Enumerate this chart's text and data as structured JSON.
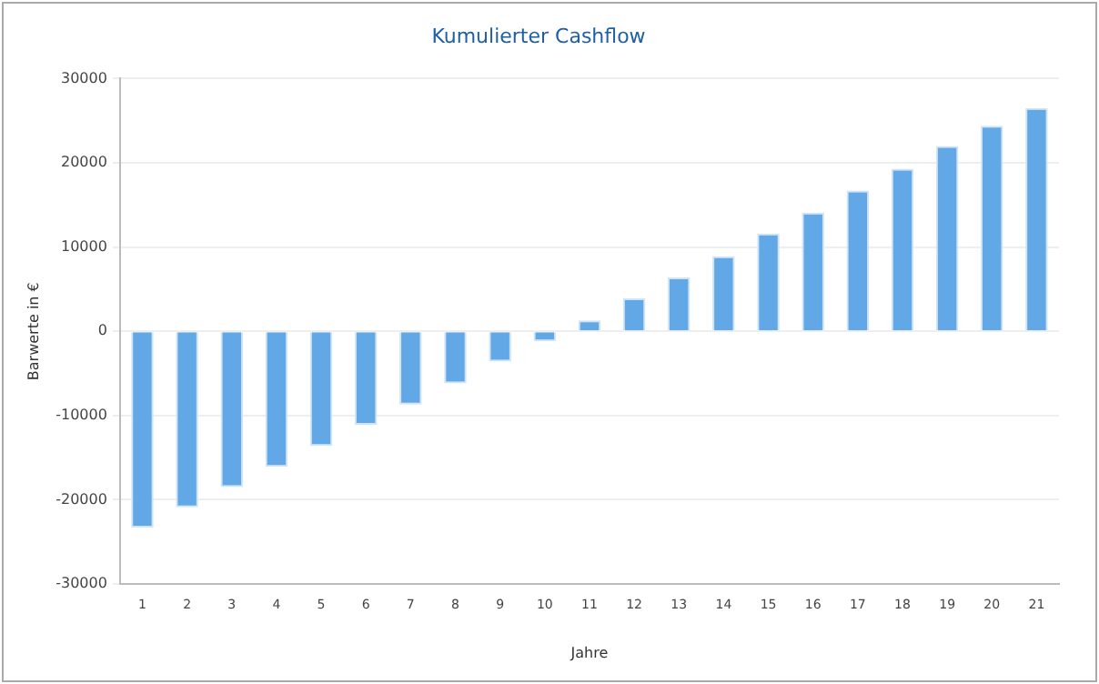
{
  "chart_data": {
    "type": "bar",
    "title": "Kumulierter Cashflow",
    "xlabel": "Jahre",
    "ylabel": "Barwerte in €",
    "categories": [
      "1",
      "2",
      "3",
      "4",
      "5",
      "6",
      "7",
      "8",
      "9",
      "10",
      "11",
      "12",
      "13",
      "14",
      "15",
      "16",
      "17",
      "18",
      "19",
      "20",
      "21"
    ],
    "values": [
      -23300,
      -20900,
      -18500,
      -16100,
      -13600,
      -11100,
      -8700,
      -6200,
      -3600,
      -1200,
      1300,
      3900,
      6400,
      8900,
      11600,
      14100,
      16700,
      19300,
      22000,
      24400,
      26500
    ],
    "color": "#63a8e6",
    "ylim": [
      -30000,
      30000
    ],
    "yticks": [
      -30000,
      -20000,
      -10000,
      0,
      10000,
      20000,
      30000
    ],
    "grid": "y",
    "legend": false
  }
}
